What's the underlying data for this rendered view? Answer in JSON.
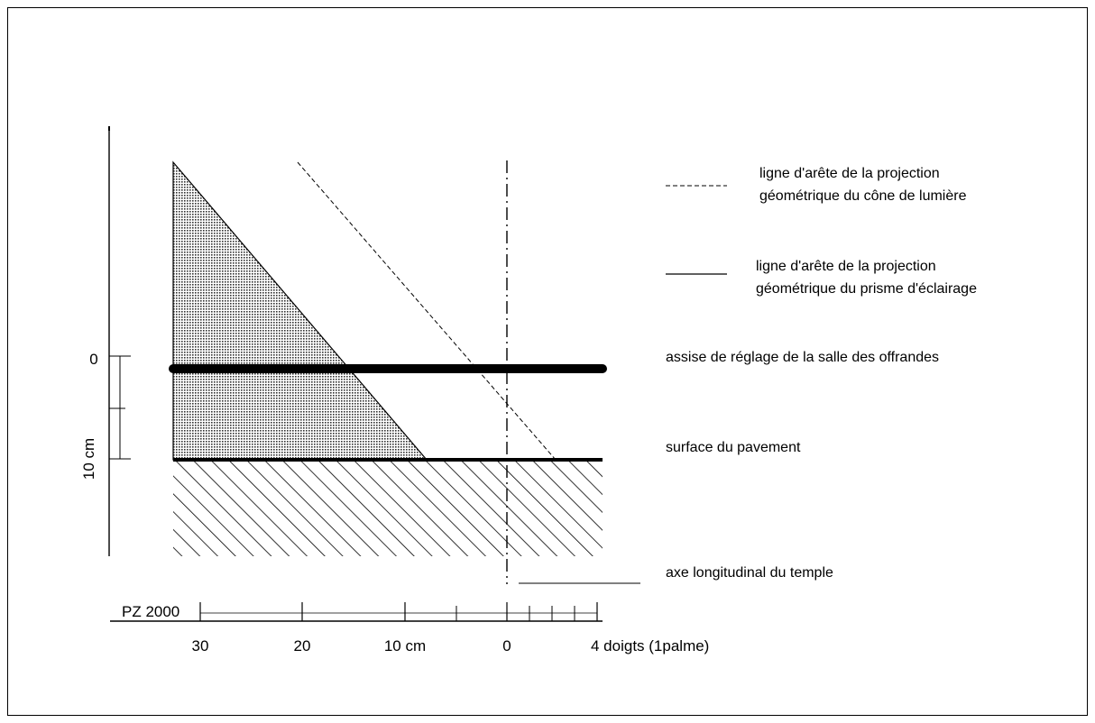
{
  "diagram": {
    "vertical_scale": {
      "labels": [
        "0",
        "10 cm"
      ]
    },
    "horizontal_scale": {
      "caption": "PZ 2000",
      "tick_labels": [
        "30",
        "20",
        "10 cm",
        "0",
        "4 doigts (1palme)"
      ]
    },
    "legend": {
      "dashed_line": [
        "ligne d'arête de la projection",
        "géométrique du cône de lumière"
      ],
      "solid_line": [
        "ligne d'arête de la projection",
        "géométrique du prisme d'éclairage"
      ],
      "offering_course": "assise de réglage de la salle des offrandes",
      "pavement": "surface du pavement",
      "axis": "axe longitudinal du temple"
    }
  }
}
